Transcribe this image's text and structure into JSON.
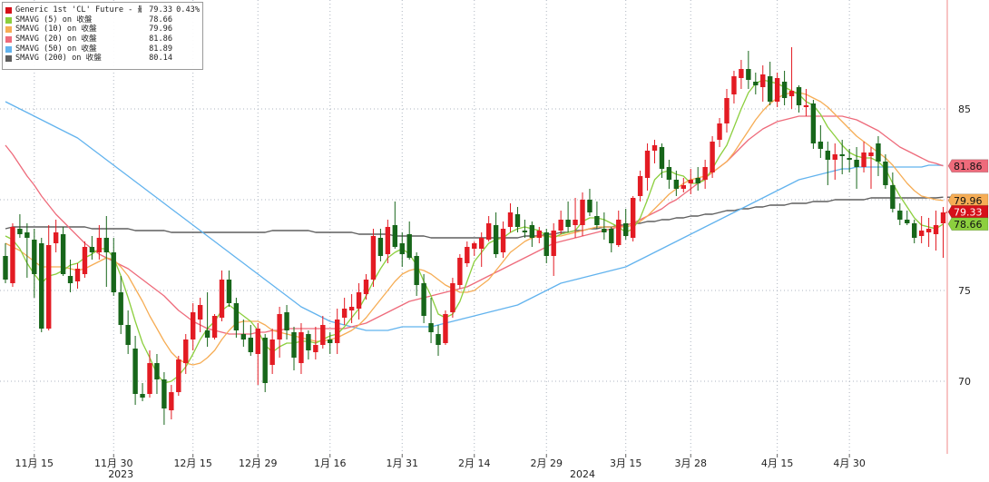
{
  "chart_data": {
    "type": "candlestick",
    "instrument": "Generic 1st 'CL' Future",
    "ylim": [
      66,
      91
    ],
    "y_ticks": [
      70,
      75,
      80,
      85
    ],
    "y_tick_labels": [
      "70",
      "75",
      "",
      "85"
    ],
    "x_tick_labels": [
      "11月 15",
      "11月 30",
      "12月 15",
      "12月 29",
      "1月 16",
      "1月 31",
      "2月 14",
      "2月 29",
      "3月 15",
      "3月 28",
      "4月 15",
      "4月 30"
    ],
    "x_tick_index": [
      4,
      15,
      26,
      35,
      45,
      55,
      65,
      75,
      86,
      95,
      107,
      117
    ],
    "year_labels": [
      "2023",
      "2024"
    ],
    "year_label_index": [
      16,
      80
    ],
    "grid": true,
    "legend": {
      "position": "top-left",
      "entries": [
        {
          "label": "Generic 1st 'CL' Future - 最新價",
          "value": "79.33",
          "change": "0.43%",
          "color": "#d6101a"
        },
        {
          "label": "SMAVG (5)  on 收盤",
          "value": "78.66",
          "color": "#8ccf3e"
        },
        {
          "label": "SMAVG (10)  on 收盤",
          "value": "79.96",
          "color": "#f6ad55"
        },
        {
          "label": "SMAVG (20)  on 收盤",
          "value": "81.86",
          "color": "#ee6b7b"
        },
        {
          "label": "SMAVG (50)  on 收盤",
          "value": "81.89",
          "color": "#62b3ee"
        },
        {
          "label": "SMAVG (200)  on 收盤",
          "value": "80.14",
          "color": "#5e5e5e"
        }
      ]
    },
    "right_tags": [
      {
        "text": "81.86",
        "value": 81.86,
        "bg": "#ee6b7b",
        "fg": "#111111"
      },
      {
        "text": "79.96",
        "value": 79.96,
        "bg": "#f6ad55",
        "fg": "#111111"
      },
      {
        "text": "79.33",
        "value": 79.33,
        "bg": "#d6101a",
        "fg": "#ffffff"
      },
      {
        "text": "78.66",
        "value": 78.66,
        "bg": "#8ccf3e",
        "fg": "#111111"
      }
    ],
    "colors": {
      "up": "#e31b23",
      "down": "#17661a",
      "grid": "#aeb5c0",
      "axis": "#f08a8a",
      "sma200_axis_line": "#333333"
    },
    "candles": [
      [
        76.9,
        77.6,
        75.4,
        75.6
      ],
      [
        75.4,
        78.7,
        75.2,
        78.5
      ],
      [
        78.4,
        79.2,
        77.9,
        78.1
      ],
      [
        78.2,
        78.7,
        75.7,
        77.9
      ],
      [
        77.8,
        78.4,
        74.6,
        75.9
      ],
      [
        77.6,
        77.9,
        72.7,
        72.9
      ],
      [
        72.9,
        78.6,
        72.8,
        77.5
      ],
      [
        77.6,
        78.9,
        77.1,
        78.2
      ],
      [
        78.1,
        78.5,
        75.8,
        75.9
      ],
      [
        75.8,
        76.7,
        74.9,
        75.4
      ],
      [
        75.5,
        76.5,
        75.1,
        76.2
      ],
      [
        75.9,
        77.7,
        75.7,
        77.4
      ],
      [
        77.4,
        78.0,
        76.7,
        77.1
      ],
      [
        77.1,
        78.6,
        76.7,
        77.9
      ],
      [
        77.9,
        79.1,
        75.2,
        77.1
      ],
      [
        77.1,
        77.9,
        74.7,
        74.9
      ],
      [
        74.9,
        75.8,
        72.6,
        73.1
      ],
      [
        73.1,
        73.9,
        71.5,
        72.0
      ],
      [
        71.8,
        72.5,
        68.7,
        69.3
      ],
      [
        69.3,
        69.9,
        68.9,
        69.1
      ],
      [
        69.3,
        71.7,
        69.1,
        71.0
      ],
      [
        71.0,
        71.5,
        69.3,
        70.1
      ],
      [
        70.1,
        70.5,
        67.6,
        68.5
      ],
      [
        68.4,
        69.8,
        67.9,
        69.4
      ],
      [
        69.4,
        71.4,
        69.2,
        71.2
      ],
      [
        71.0,
        72.6,
        70.4,
        72.3
      ],
      [
        72.3,
        74.3,
        71.7,
        73.8
      ],
      [
        73.4,
        74.6,
        72.7,
        74.2
      ],
      [
        72.8,
        74.9,
        71.9,
        72.4
      ],
      [
        72.4,
        73.7,
        72.3,
        73.6
      ],
      [
        73.5,
        76.1,
        73.3,
        75.6
      ],
      [
        75.6,
        76.1,
        74.1,
        74.3
      ],
      [
        74.3,
        74.6,
        72.4,
        72.8
      ],
      [
        72.6,
        73.4,
        71.9,
        72.3
      ],
      [
        72.4,
        73.1,
        71.4,
        71.6
      ],
      [
        71.5,
        73.2,
        69.8,
        72.9
      ],
      [
        72.4,
        72.6,
        69.4,
        69.9
      ],
      [
        70.9,
        72.9,
        70.4,
        72.3
      ],
      [
        72.3,
        74.1,
        71.3,
        73.7
      ],
      [
        73.8,
        74.2,
        72.3,
        72.8
      ],
      [
        72.7,
        73.0,
        70.6,
        71.3
      ],
      [
        71.0,
        73.2,
        70.4,
        72.7
      ],
      [
        72.6,
        72.8,
        71.2,
        71.7
      ],
      [
        71.6,
        73.0,
        71.2,
        72.0
      ],
      [
        72.0,
        73.6,
        71.8,
        73.1
      ],
      [
        72.3,
        72.7,
        71.5,
        72.1
      ],
      [
        72.1,
        74.0,
        71.5,
        73.4
      ],
      [
        73.5,
        74.6,
        73.1,
        74.0
      ],
      [
        73.9,
        74.8,
        73.2,
        74.1
      ],
      [
        74.0,
        75.4,
        73.4,
        74.9
      ],
      [
        74.8,
        75.9,
        74.5,
        75.6
      ],
      [
        75.6,
        78.4,
        75.2,
        78.0
      ],
      [
        77.9,
        78.4,
        76.6,
        76.9
      ],
      [
        77.0,
        78.9,
        76.5,
        78.5
      ],
      [
        78.6,
        79.9,
        77.3,
        77.4
      ],
      [
        77.6,
        78.2,
        76.3,
        77.0
      ],
      [
        78.1,
        78.8,
        76.7,
        76.8
      ],
      [
        76.9,
        77.1,
        74.7,
        75.3
      ],
      [
        75.4,
        75.9,
        73.2,
        73.6
      ],
      [
        73.2,
        74.6,
        72.1,
        72.7
      ],
      [
        72.6,
        73.1,
        71.4,
        72.0
      ],
      [
        72.1,
        73.9,
        72.0,
        73.7
      ],
      [
        73.8,
        75.7,
        73.5,
        75.4
      ],
      [
        75.3,
        77.0,
        75.1,
        76.8
      ],
      [
        76.5,
        77.7,
        76.3,
        77.4
      ],
      [
        77.3,
        77.7,
        76.9,
        77.6
      ],
      [
        77.3,
        78.2,
        76.3,
        77.9
      ],
      [
        77.8,
        79.1,
        77.7,
        78.7
      ],
      [
        78.6,
        79.3,
        76.8,
        77.0
      ],
      [
        77.1,
        78.8,
        76.8,
        78.4
      ],
      [
        78.5,
        79.8,
        78.2,
        79.3
      ],
      [
        79.2,
        79.6,
        78.2,
        78.5
      ],
      [
        78.3,
        78.9,
        77.9,
        78.2
      ],
      [
        78.6,
        78.8,
        77.4,
        77.9
      ],
      [
        77.9,
        78.5,
        77.6,
        78.3
      ],
      [
        78.2,
        78.4,
        76.5,
        76.9
      ],
      [
        76.9,
        78.7,
        75.8,
        78.3
      ],
      [
        78.3,
        79.4,
        78.1,
        78.9
      ],
      [
        78.9,
        79.9,
        78.2,
        78.5
      ],
      [
        78.6,
        80.1,
        77.9,
        78.9
      ],
      [
        78.6,
        80.4,
        78.0,
        80.0
      ],
      [
        80.0,
        80.6,
        79.1,
        79.3
      ],
      [
        79.1,
        79.9,
        78.4,
        78.6
      ],
      [
        78.4,
        79.3,
        77.8,
        78.2
      ],
      [
        78.4,
        78.5,
        77.1,
        77.6
      ],
      [
        77.5,
        79.4,
        77.4,
        78.9
      ],
      [
        78.7,
        79.5,
        77.8,
        78.0
      ],
      [
        77.9,
        80.2,
        77.7,
        80.1
      ],
      [
        80.2,
        81.6,
        79.9,
        81.3
      ],
      [
        81.2,
        83.1,
        80.5,
        82.7
      ],
      [
        82.7,
        83.3,
        82.0,
        83.0
      ],
      [
        82.9,
        83.1,
        81.2,
        81.7
      ],
      [
        81.8,
        82.2,
        80.6,
        81.1
      ],
      [
        81.1,
        81.6,
        80.2,
        80.6
      ],
      [
        80.6,
        81.2,
        80.4,
        80.8
      ],
      [
        80.9,
        81.7,
        80.3,
        81.1
      ],
      [
        81.2,
        81.8,
        80.5,
        80.9
      ],
      [
        81.1,
        82.2,
        80.6,
        81.8
      ],
      [
        81.5,
        83.5,
        81.2,
        83.2
      ],
      [
        83.3,
        84.5,
        82.9,
        84.2
      ],
      [
        84.2,
        86.1,
        83.7,
        85.6
      ],
      [
        85.8,
        87.1,
        85.3,
        86.8
      ],
      [
        86.7,
        87.7,
        86.1,
        87.2
      ],
      [
        87.2,
        88.2,
        86.1,
        86.6
      ],
      [
        86.5,
        87.0,
        85.8,
        86.3
      ],
      [
        86.2,
        87.4,
        85.4,
        86.9
      ],
      [
        86.8,
        87.6,
        85.2,
        85.4
      ],
      [
        85.4,
        87.0,
        85.1,
        86.7
      ],
      [
        86.5,
        87.1,
        85.2,
        85.6
      ],
      [
        85.7,
        88.4,
        85.0,
        86.0
      ],
      [
        86.2,
        86.3,
        84.8,
        85.2
      ],
      [
        85.1,
        86.1,
        84.6,
        85.2
      ],
      [
        85.3,
        85.5,
        82.8,
        83.1
      ],
      [
        83.2,
        84.1,
        82.3,
        82.8
      ],
      [
        82.7,
        83.2,
        80.8,
        82.2
      ],
      [
        82.2,
        83.1,
        81.1,
        82.5
      ],
      [
        82.5,
        83.3,
        81.4,
        82.4
      ],
      [
        82.3,
        82.8,
        81.5,
        82.2
      ],
      [
        82.2,
        82.9,
        80.6,
        81.8
      ],
      [
        81.8,
        83.2,
        81.5,
        82.6
      ],
      [
        82.4,
        82.9,
        80.6,
        82.6
      ],
      [
        83.1,
        83.5,
        81.3,
        82.1
      ],
      [
        82.1,
        82.5,
        80.6,
        80.8
      ],
      [
        80.8,
        81.5,
        79.3,
        79.5
      ],
      [
        79.4,
        79.8,
        78.6,
        78.9
      ],
      [
        78.9,
        79.4,
        78.6,
        78.7
      ],
      [
        78.7,
        78.9,
        77.6,
        77.9
      ],
      [
        78.0,
        79.1,
        77.6,
        78.3
      ],
      [
        78.2,
        79.0,
        77.4,
        78.4
      ],
      [
        78.1,
        79.4,
        77.2,
        78.6
      ],
      [
        78.7,
        79.6,
        76.8,
        79.3
      ]
    ],
    "sma5": [
      78.0,
      77.8,
      77.3,
      76.5,
      75.9,
      75.4,
      75.8,
      75.9,
      76.1,
      76.4,
      76.5,
      76.8,
      77.0,
      77.3,
      77.3,
      76.8,
      75.8,
      74.6,
      73.3,
      72.1,
      71.3,
      70.4,
      69.9,
      70.0,
      70.3,
      70.8,
      71.5,
      72.3,
      72.9,
      73.3,
      73.9,
      74.2,
      73.9,
      73.6,
      73.3,
      72.8,
      72.0,
      71.6,
      71.9,
      72.1,
      72.1,
      72.2,
      72.2,
      72.1,
      72.3,
      72.5,
      72.6,
      73.0,
      73.5,
      74.0,
      74.7,
      75.5,
      76.2,
      76.8,
      77.1,
      77.3,
      77.0,
      76.4,
      75.5,
      74.7,
      73.7,
      73.5,
      73.7,
      74.4,
      75.5,
      76.6,
      77.1,
      77.6,
      77.8,
      77.9,
      78.2,
      78.4,
      78.5,
      78.4,
      78.3,
      78.0,
      77.9,
      78.1,
      78.2,
      78.3,
      78.8,
      79.0,
      79.0,
      78.9,
      78.7,
      78.5,
      78.2,
      78.4,
      79.0,
      80.0,
      81.1,
      81.5,
      81.6,
      81.4,
      81.3,
      80.9,
      80.9,
      81.1,
      81.7,
      82.4,
      83.0,
      84.0,
      85.0,
      85.9,
      86.4,
      86.6,
      86.5,
      86.4,
      86.2,
      86.0,
      85.8,
      85.4,
      85.2,
      84.7,
      84.0,
      83.5,
      83.0,
      82.6,
      82.4,
      82.3,
      82.3,
      82.1,
      81.7,
      80.9,
      80.2,
      79.6,
      79.0,
      78.6,
      78.5,
      78.4,
      78.66
    ],
    "sma10": [
      77.6,
      77.4,
      77.2,
      76.9,
      76.6,
      76.3,
      76.3,
      76.3,
      76.3,
      76.2,
      76.1,
      76.2,
      76.4,
      76.6,
      76.8,
      76.7,
      76.3,
      75.8,
      75.1,
      74.4,
      73.6,
      72.9,
      72.2,
      71.6,
      71.2,
      71.0,
      70.9,
      71.0,
      71.3,
      71.7,
      72.3,
      72.8,
      73.2,
      73.3,
      73.3,
      73.3,
      73.1,
      72.8,
      72.7,
      72.6,
      72.5,
      72.4,
      72.3,
      72.2,
      72.2,
      72.3,
      72.4,
      72.6,
      72.8,
      73.1,
      73.5,
      74.0,
      74.5,
      75.0,
      75.5,
      75.9,
      76.1,
      76.2,
      76.1,
      75.9,
      75.6,
      75.3,
      75.1,
      74.9,
      74.9,
      75.0,
      75.3,
      75.6,
      76.1,
      76.6,
      77.1,
      77.4,
      77.7,
      77.9,
      78.0,
      78.0,
      78.0,
      78.0,
      78.1,
      78.2,
      78.3,
      78.4,
      78.5,
      78.5,
      78.5,
      78.5,
      78.5,
      78.6,
      78.8,
      79.1,
      79.5,
      79.9,
      80.3,
      80.6,
      80.9,
      81.1,
      81.2,
      81.3,
      81.5,
      81.8,
      82.1,
      82.6,
      83.2,
      83.8,
      84.4,
      84.9,
      85.3,
      85.6,
      85.8,
      85.9,
      85.9,
      85.8,
      85.6,
      85.4,
      85.1,
      84.7,
      84.3,
      83.9,
      83.5,
      83.2,
      82.9,
      82.6,
      82.3,
      81.9,
      81.4,
      80.9,
      80.5,
      80.2,
      80.1,
      80.0,
      79.96
    ],
    "sma20": [
      83.0,
      82.5,
      81.9,
      81.3,
      80.8,
      80.2,
      79.7,
      79.2,
      78.8,
      78.4,
      78.0,
      77.6,
      77.3,
      77.0,
      76.8,
      76.6,
      76.4,
      76.2,
      75.9,
      75.6,
      75.3,
      75.0,
      74.7,
      74.3,
      73.9,
      73.6,
      73.3,
      73.1,
      72.9,
      72.8,
      72.7,
      72.6,
      72.6,
      72.6,
      72.6,
      72.7,
      72.7,
      72.8,
      72.8,
      72.9,
      72.9,
      72.9,
      72.9,
      72.9,
      72.9,
      72.9,
      72.9,
      72.9,
      73.0,
      73.1,
      73.2,
      73.4,
      73.6,
      73.8,
      74.0,
      74.2,
      74.4,
      74.5,
      74.6,
      74.7,
      74.8,
      74.9,
      75.0,
      75.1,
      75.2,
      75.4,
      75.6,
      75.8,
      76.0,
      76.2,
      76.4,
      76.6,
      76.8,
      77.0,
      77.2,
      77.4,
      77.6,
      77.7,
      77.8,
      77.9,
      78.0,
      78.1,
      78.2,
      78.3,
      78.4,
      78.5,
      78.6,
      78.7,
      78.9,
      79.1,
      79.3,
      79.5,
      79.8,
      80.0,
      80.3,
      80.6,
      80.9,
      81.2,
      81.5,
      81.8,
      82.1,
      82.5,
      82.9,
      83.3,
      83.6,
      83.9,
      84.1,
      84.3,
      84.4,
      84.5,
      84.6,
      84.6,
      84.6,
      84.6,
      84.6,
      84.6,
      84.6,
      84.5,
      84.4,
      84.2,
      84.0,
      83.8,
      83.5,
      83.2,
      82.9,
      82.7,
      82.5,
      82.3,
      82.1,
      82.0,
      81.86
    ],
    "sma50": [
      85.4,
      85.2,
      85.0,
      84.8,
      84.6,
      84.4,
      84.2,
      84.0,
      83.8,
      83.6,
      83.4,
      83.1,
      82.8,
      82.5,
      82.2,
      81.9,
      81.6,
      81.3,
      81.0,
      80.7,
      80.4,
      80.1,
      79.8,
      79.5,
      79.2,
      78.9,
      78.6,
      78.3,
      78.0,
      77.7,
      77.4,
      77.1,
      76.8,
      76.5,
      76.2,
      75.9,
      75.6,
      75.3,
      75.0,
      74.7,
      74.4,
      74.1,
      73.9,
      73.7,
      73.5,
      73.3,
      73.2,
      73.1,
      73.0,
      72.9,
      72.8,
      72.8,
      72.8,
      72.8,
      72.9,
      73.0,
      73.0,
      73.0,
      73.0,
      73.0,
      73.1,
      73.2,
      73.3,
      73.4,
      73.5,
      73.6,
      73.7,
      73.8,
      73.9,
      74.0,
      74.1,
      74.2,
      74.4,
      74.6,
      74.8,
      75.0,
      75.2,
      75.4,
      75.5,
      75.6,
      75.7,
      75.8,
      75.9,
      76.0,
      76.1,
      76.2,
      76.3,
      76.5,
      76.7,
      76.9,
      77.1,
      77.3,
      77.5,
      77.7,
      77.9,
      78.1,
      78.3,
      78.5,
      78.7,
      78.9,
      79.1,
      79.3,
      79.5,
      79.7,
      79.9,
      80.1,
      80.3,
      80.5,
      80.7,
      80.9,
      81.1,
      81.2,
      81.3,
      81.4,
      81.5,
      81.6,
      81.7,
      81.7,
      81.8,
      81.8,
      81.8,
      81.8,
      81.8,
      81.8,
      81.8,
      81.8,
      81.8,
      81.8,
      81.9,
      81.9,
      81.89
    ],
    "sma200": [
      78.4,
      78.5,
      78.5,
      78.5,
      78.5,
      78.5,
      78.5,
      78.5,
      78.5,
      78.5,
      78.5,
      78.5,
      78.4,
      78.4,
      78.4,
      78.4,
      78.4,
      78.4,
      78.3,
      78.3,
      78.3,
      78.3,
      78.3,
      78.2,
      78.2,
      78.2,
      78.2,
      78.2,
      78.2,
      78.2,
      78.2,
      78.2,
      78.2,
      78.2,
      78.2,
      78.2,
      78.2,
      78.3,
      78.3,
      78.3,
      78.3,
      78.3,
      78.3,
      78.2,
      78.2,
      78.2,
      78.2,
      78.2,
      78.2,
      78.1,
      78.1,
      78.1,
      78.1,
      78.1,
      78.0,
      78.0,
      78.0,
      78.0,
      78.0,
      77.9,
      77.9,
      77.9,
      77.9,
      77.9,
      77.9,
      77.9,
      77.9,
      77.9,
      77.9,
      77.9,
      77.9,
      77.9,
      78.0,
      78.0,
      78.0,
      78.1,
      78.1,
      78.2,
      78.2,
      78.3,
      78.3,
      78.4,
      78.4,
      78.5,
      78.5,
      78.6,
      78.6,
      78.7,
      78.7,
      78.8,
      78.8,
      78.9,
      78.9,
      79.0,
      79.0,
      79.1,
      79.1,
      79.2,
      79.2,
      79.3,
      79.4,
      79.4,
      79.5,
      79.5,
      79.6,
      79.6,
      79.7,
      79.7,
      79.7,
      79.8,
      79.8,
      79.8,
      79.9,
      79.9,
      79.9,
      80.0,
      80.0,
      80.0,
      80.0,
      80.0,
      80.1,
      80.1,
      80.1,
      80.1,
      80.1,
      80.1,
      80.1,
      80.1,
      80.1,
      80.1,
      80.14
    ]
  }
}
